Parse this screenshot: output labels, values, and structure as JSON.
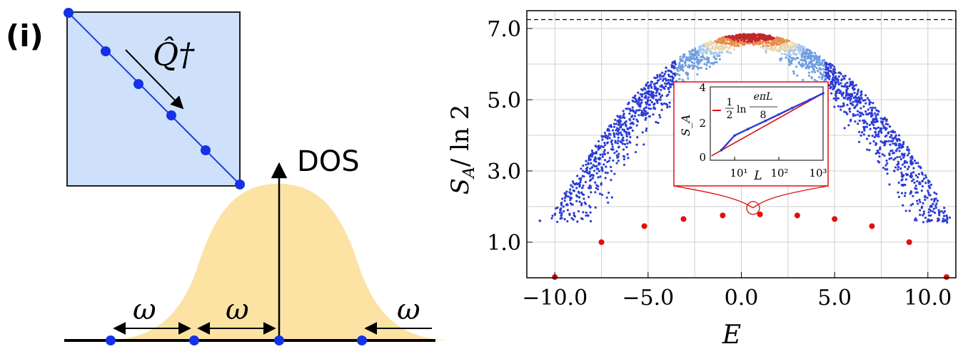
{
  "left_panel": {
    "panel_label": "(i)",
    "matrix_operator": "Q̂†",
    "dos_label": "DOS",
    "omega_labels": [
      "ω",
      "ω",
      "ω"
    ],
    "colors": {
      "matrix_fill": "#cfe0fb",
      "dos_fill": "#fce3a4",
      "dot": "#1632e6",
      "line": "#1e3de0"
    }
  },
  "chart_data": {
    "type": "scatter",
    "xlabel": "E",
    "ylabel": "S_A / ln 2",
    "xlim": [
      -11.5,
      11.5
    ],
    "ylim": [
      0.0,
      7.5
    ],
    "xticks": [
      -10.0,
      -5.0,
      0.0,
      5.0,
      10.0
    ],
    "xtick_labels": [
      "−10.0",
      "−5.0",
      "0.0",
      "5.0",
      "10.0"
    ],
    "yticks": [
      1.0,
      3.0,
      5.0,
      7.0
    ],
    "ytick_labels": [
      "1.0",
      "3.0",
      "5.0",
      "7.0"
    ],
    "grid": true,
    "dashed_line_y": 7.25,
    "series": [
      {
        "name": "",
        "color": "#e01010",
        "x": [
          -10.0,
          -7.5,
          -5.2,
          -3.1,
          -1.0,
          1.0,
          3.0,
          5.0,
          7.0,
          9.0,
          11.0
        ],
        "y": [
          0.02,
          1.0,
          1.45,
          1.65,
          1.75,
          1.78,
          1.75,
          1.65,
          1.45,
          1.0,
          0.02
        ]
      }
    ],
    "cloud": {
      "color_low": "#2b3cd6",
      "color_high": "#c0282a",
      "center_x": 0.5,
      "peak_y": 6.85
    },
    "inset": {
      "ylabel": "S_A",
      "xlabel": "L",
      "yticks": [
        0,
        2,
        4
      ],
      "ytick_labels": [
        "0",
        "2",
        "4"
      ],
      "xtick_labels": [
        "10¹",
        "10²",
        "10³"
      ],
      "xlog": true,
      "legend_label": "1/2 ln(eπL/8)",
      "legend_parts": {
        "half_num": "1",
        "half_den": "2",
        "ln": "ln",
        "frac_num": "eπL",
        "frac_den": "8"
      },
      "line_color": "#e01010",
      "data_color": "#2b3cd6",
      "data_x": [
        5,
        10,
        20,
        50,
        100,
        200,
        500,
        1000
      ],
      "data_y": [
        0.55,
        1.35,
        1.7,
        2.15,
        2.5,
        2.85,
        3.3,
        3.65
      ],
      "fit_x": [
        3,
        1000
      ],
      "fit_y": [
        0.24,
        3.65
      ]
    }
  }
}
